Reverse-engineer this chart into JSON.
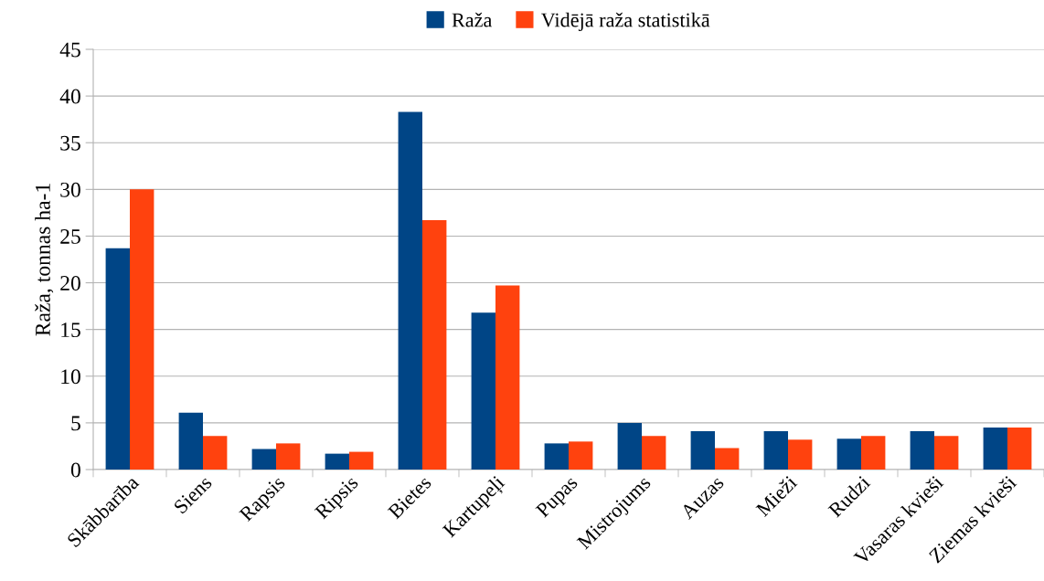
{
  "chart_data": {
    "type": "bar",
    "ylabel": "Raža, tonnas ha-1",
    "categories": [
      "Skābbarība",
      "Siens",
      "Rapsis",
      "Ripsis",
      "Bietes",
      "Kartupeļi",
      "Pupas",
      "Mistrojums",
      "Auzas",
      "Mieži",
      "Rudzi",
      "Vasaras kvieši",
      "Ziemas kvieši"
    ],
    "series": [
      {
        "name": "Raža",
        "color": "#004586",
        "values": [
          23.7,
          6.1,
          2.2,
          1.7,
          38.3,
          16.8,
          2.8,
          5.0,
          4.1,
          4.1,
          3.3,
          4.1,
          4.5
        ]
      },
      {
        "name": "Vidējā raža statistikā",
        "color": "#ff420e",
        "values": [
          30.0,
          3.6,
          2.8,
          1.9,
          26.7,
          19.7,
          3.0,
          3.6,
          2.3,
          3.2,
          3.6,
          3.6,
          4.5
        ]
      }
    ],
    "ylim": [
      0,
      45
    ],
    "yticks": [
      0,
      5,
      10,
      15,
      20,
      25,
      30,
      35,
      40,
      45
    ],
    "grid": "y",
    "legend": "top"
  }
}
